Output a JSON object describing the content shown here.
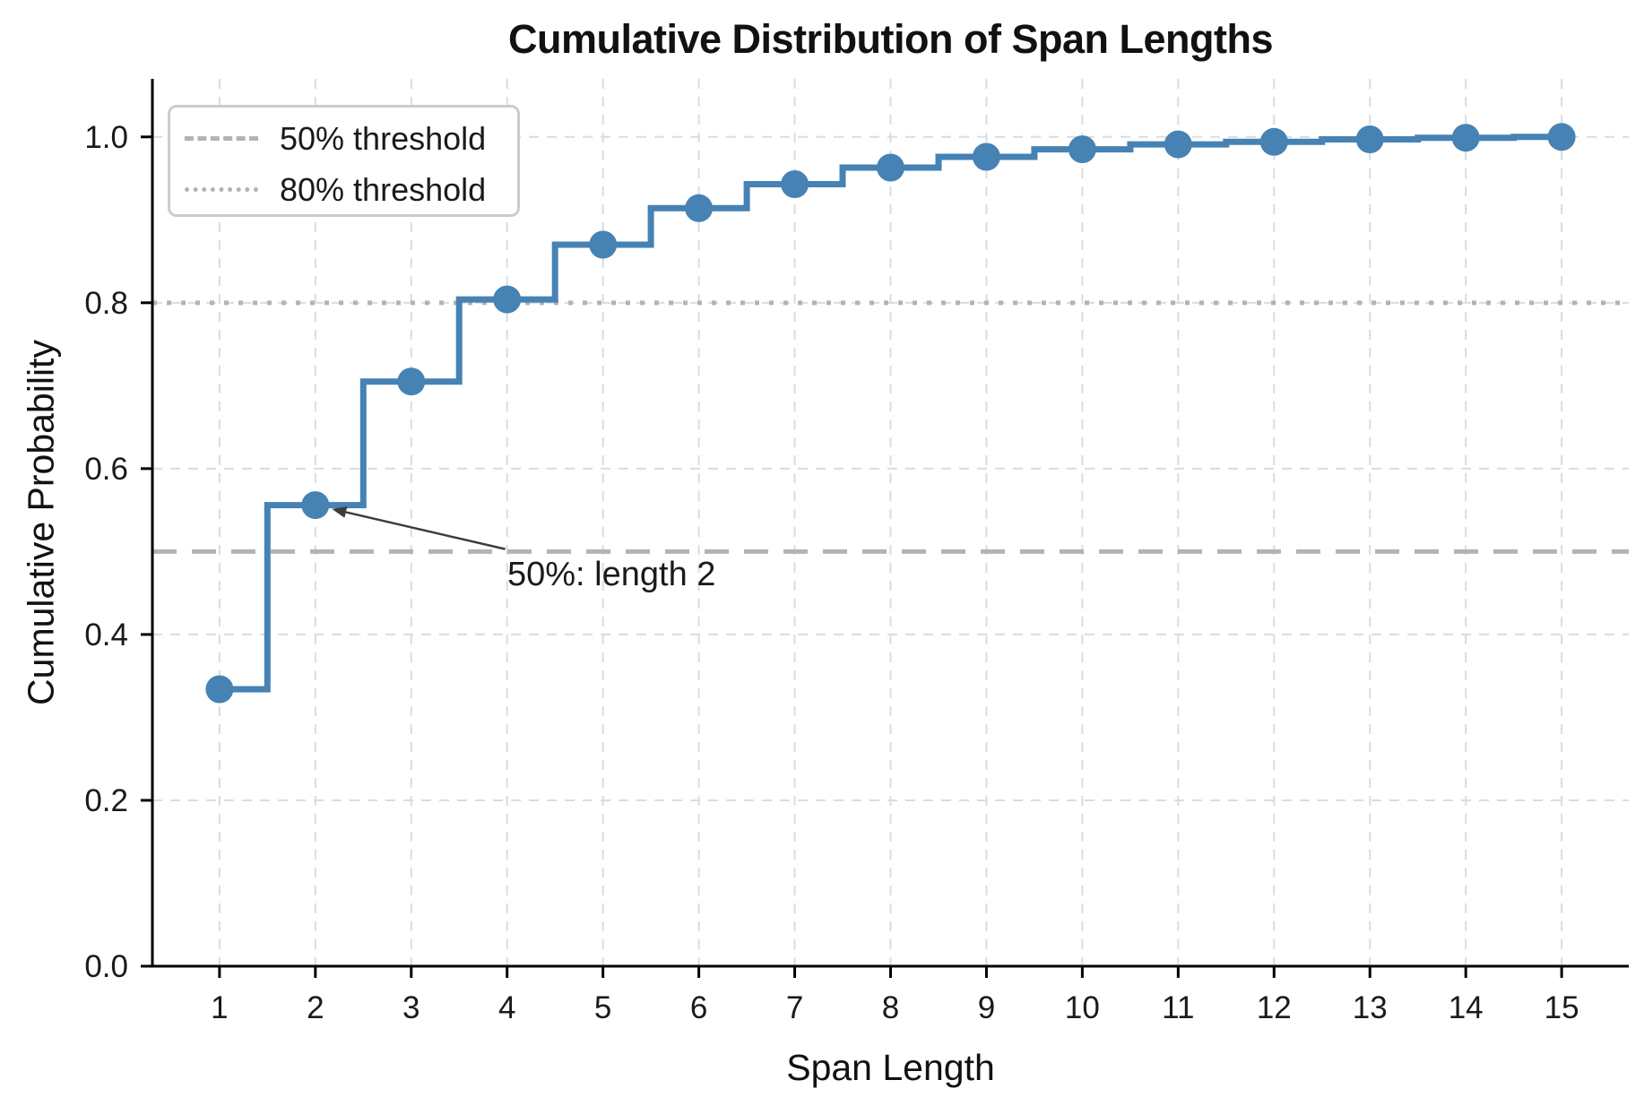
{
  "chart_data": {
    "type": "line",
    "subtype": "cdf-step-mid",
    "title": "Cumulative Distribution of Span Lengths",
    "xlabel": "Span Length",
    "ylabel": "Cumulative Probability",
    "x": [
      1,
      2,
      3,
      4,
      5,
      6,
      7,
      8,
      9,
      10,
      11,
      12,
      13,
      14,
      15
    ],
    "y": [
      0.334,
      0.556,
      0.705,
      0.804,
      0.87,
      0.914,
      0.943,
      0.963,
      0.976,
      0.985,
      0.991,
      0.994,
      0.997,
      0.999,
      1.0
    ],
    "xticks": [
      1,
      2,
      3,
      4,
      5,
      6,
      7,
      8,
      9,
      10,
      11,
      12,
      13,
      14,
      15
    ],
    "xtick_labels": [
      "1",
      "2",
      "3",
      "4",
      "5",
      "6",
      "7",
      "8",
      "9",
      "10",
      "11",
      "12",
      "13",
      "14",
      "15"
    ],
    "yticks": [
      0.0,
      0.2,
      0.4,
      0.6,
      0.8,
      1.0
    ],
    "ytick_labels": [
      "0.0",
      "0.2",
      "0.4",
      "0.6",
      "0.8",
      "1.0"
    ],
    "xlim": [
      0.3,
      15.7
    ],
    "ylim": [
      0.0,
      1.07
    ],
    "grid": true,
    "legend_position": "upper-left",
    "thresholds": [
      {
        "label": "50% threshold",
        "style": "dashed",
        "value": 0.5
      },
      {
        "label": "80% threshold",
        "style": "dotted",
        "value": 0.8
      }
    ],
    "annotation": {
      "text": "50%: length 2",
      "target": {
        "x": 2,
        "y": 0.556
      },
      "text_anchor": {
        "x": 3.98,
        "y": 0.503
      }
    },
    "colors": {
      "line": "#4682B4",
      "marker": "#4682B4",
      "threshold": "#b3b3b3",
      "grid": "#dcdcdc",
      "spine": "#000000",
      "text": "#1a1a1a",
      "arrow": "#3d3d3d"
    }
  }
}
